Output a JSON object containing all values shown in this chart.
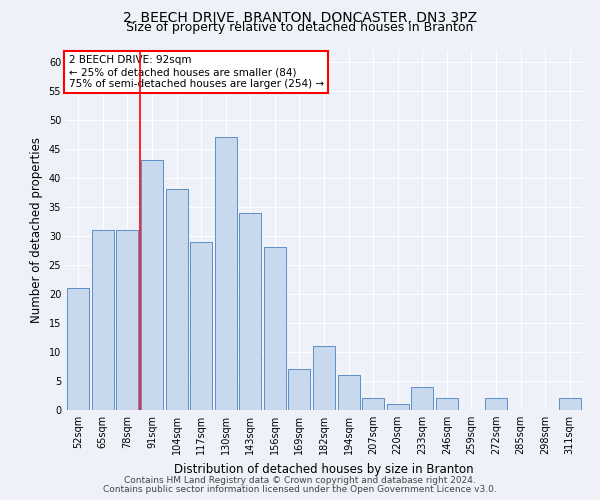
{
  "title1": "2, BEECH DRIVE, BRANTON, DONCASTER, DN3 3PZ",
  "title2": "Size of property relative to detached houses in Branton",
  "xlabel": "Distribution of detached houses by size in Branton",
  "ylabel": "Number of detached properties",
  "categories": [
    "52sqm",
    "65sqm",
    "78sqm",
    "91sqm",
    "104sqm",
    "117sqm",
    "130sqm",
    "143sqm",
    "156sqm",
    "169sqm",
    "182sqm",
    "194sqm",
    "207sqm",
    "220sqm",
    "233sqm",
    "246sqm",
    "259sqm",
    "272sqm",
    "285sqm",
    "298sqm",
    "311sqm"
  ],
  "values": [
    21,
    31,
    31,
    43,
    38,
    29,
    47,
    34,
    28,
    7,
    11,
    6,
    2,
    1,
    4,
    2,
    0,
    2,
    0,
    0,
    2
  ],
  "bar_color": "#c9d9ed",
  "bar_edge_color": "#5b8fc9",
  "red_line_x": 2.5,
  "annotation_title": "2 BEECH DRIVE: 92sqm",
  "annotation_line1": "← 25% of detached houses are smaller (84)",
  "annotation_line2": "75% of semi-detached houses are larger (254) →",
  "ylim": [
    0,
    62
  ],
  "yticks": [
    0,
    5,
    10,
    15,
    20,
    25,
    30,
    35,
    40,
    45,
    50,
    55,
    60
  ],
  "footer1": "Contains HM Land Registry data © Crown copyright and database right 2024.",
  "footer2": "Contains public sector information licensed under the Open Government Licence v3.0.",
  "bg_color": "#eef2f8",
  "plot_bg_color": "#eef2f8",
  "grid_color": "#ffffff",
  "title_fontsize": 10,
  "subtitle_fontsize": 9,
  "tick_fontsize": 7,
  "label_fontsize": 8.5,
  "footer_fontsize": 6.5
}
